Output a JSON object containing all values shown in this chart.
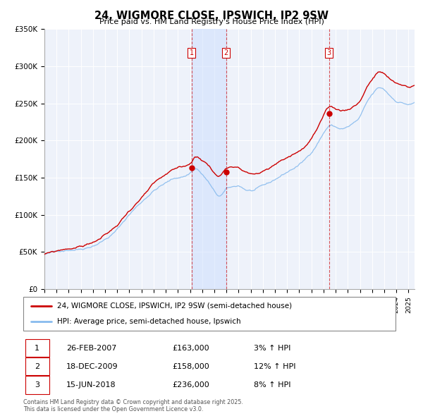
{
  "title": "24, WIGMORE CLOSE, IPSWICH, IP2 9SW",
  "subtitle": "Price paid vs. HM Land Registry's House Price Index (HPI)",
  "line1_label": "24, WIGMORE CLOSE, IPSWICH, IP2 9SW (semi-detached house)",
  "line2_label": "HPI: Average price, semi-detached house, Ipswich",
  "line1_color": "#cc0000",
  "line2_color": "#88bbee",
  "background_color": "#eef2fa",
  "grid_color": "#ffffff",
  "ylim": [
    0,
    350000
  ],
  "yticks": [
    0,
    50000,
    100000,
    150000,
    200000,
    250000,
    300000,
    350000
  ],
  "ytick_labels": [
    "£0",
    "£50K",
    "£100K",
    "£150K",
    "£200K",
    "£250K",
    "£300K",
    "£350K"
  ],
  "xlim_start": 1995.0,
  "xlim_end": 2025.5,
  "sale_dates": [
    2007.12,
    2009.96,
    2018.45
  ],
  "sale_prices": [
    163000,
    158000,
    236000
  ],
  "sale_labels": [
    "1",
    "2",
    "3"
  ],
  "sale_date_strs": [
    "26-FEB-2007",
    "18-DEC-2009",
    "15-JUN-2018"
  ],
  "sale_price_strs": [
    "£163,000",
    "£158,000",
    "£236,000"
  ],
  "sale_hpi_strs": [
    "3% ↑ HPI",
    "12% ↑ HPI",
    "8% ↑ HPI"
  ],
  "footnote": "Contains HM Land Registry data © Crown copyright and database right 2025.\nThis data is licensed under the Open Government Licence v3.0."
}
